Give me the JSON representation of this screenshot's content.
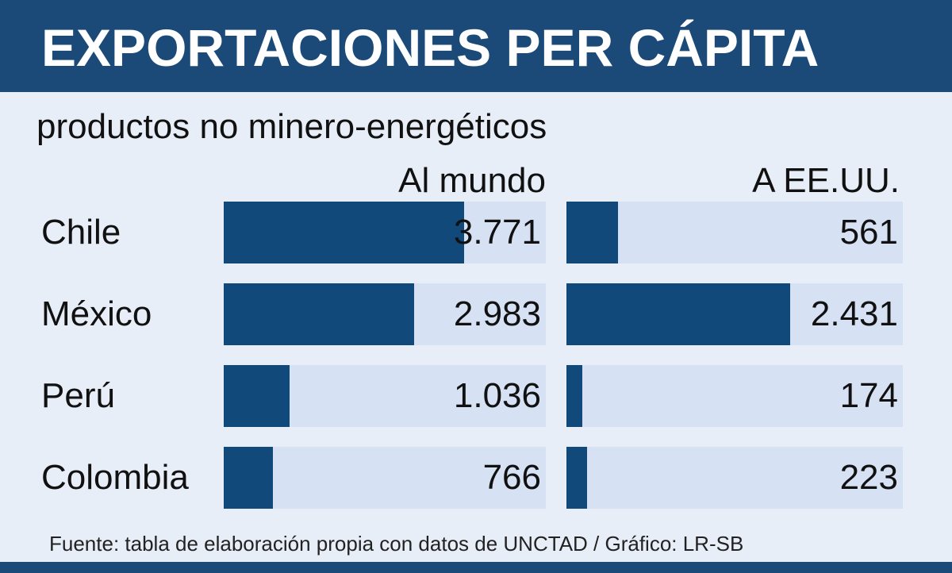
{
  "chart_data": {
    "type": "bar",
    "title": "EXPORTACIONES PER CÁPITA",
    "subtitle": "productos no minero-energéticos",
    "categories": [
      "Chile",
      "México",
      "Perú",
      "Colombia"
    ],
    "series": [
      {
        "name": "Al mundo",
        "values": [
          3771,
          2983,
          1036,
          766
        ],
        "labels": [
          "3.771",
          "2.983",
          "1.036",
          "766"
        ]
      },
      {
        "name": "A EE.UU.",
        "values": [
          561,
          2431,
          174,
          223
        ],
        "labels": [
          "561",
          "2.431",
          "174",
          "223"
        ]
      }
    ],
    "bar_color": "#114a7a",
    "track_color": "#d6e1f3",
    "source": "Fuente: tabla de elaboración propia con datos de UNCTAD / Gráfico: LR-SB"
  },
  "colors": {
    "header": "#1b4a78",
    "background": "#e8eef8"
  }
}
